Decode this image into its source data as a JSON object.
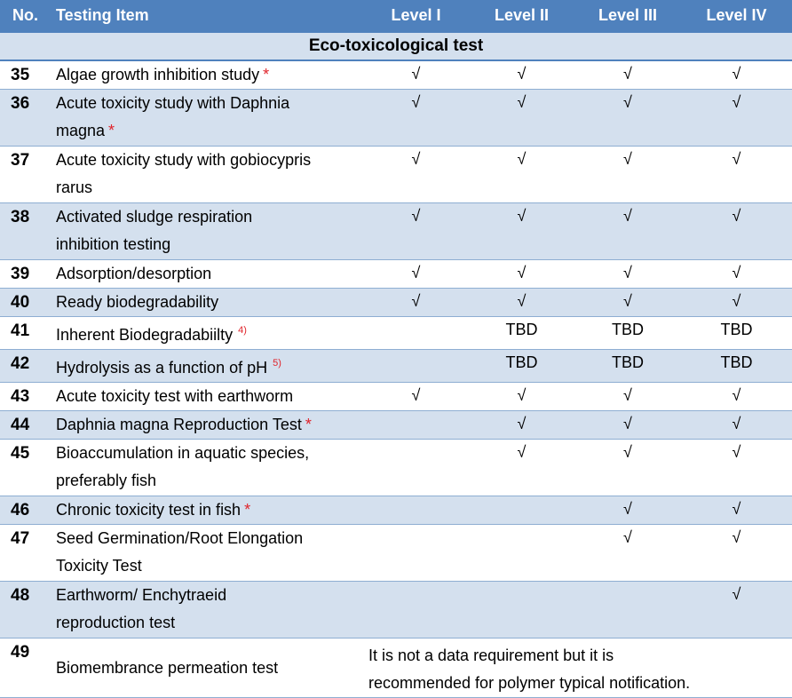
{
  "header": {
    "no": "No.",
    "item": "Testing Item",
    "levels": [
      "Level I",
      "Level II",
      "Level III",
      "Level IV"
    ]
  },
  "section_title": "Eco-toxicological test",
  "check": "√",
  "rows": [
    {
      "no": "35",
      "line1": "Algae growth inhibition study",
      "line2": "",
      "star": "*",
      "sup": "",
      "l1": "√",
      "l2": "√",
      "l3": "√",
      "l4": "√"
    },
    {
      "no": "36",
      "line1": "Acute toxicity study with Daphnia",
      "line2": "magna",
      "star": "*",
      "sup": "",
      "l1": "√",
      "l2": "√",
      "l3": "√",
      "l4": "√"
    },
    {
      "no": "37",
      "line1": "Acute toxicity study with gobiocypris",
      "line2": "rarus",
      "star": "",
      "sup": "",
      "l1": "√",
      "l2": "√",
      "l3": "√",
      "l4": "√"
    },
    {
      "no": "38",
      "line1": "Activated sludge respiration",
      "line2": "inhibition testing",
      "star": "",
      "sup": "",
      "l1": "√",
      "l2": "√",
      "l3": "√",
      "l4": "√"
    },
    {
      "no": "39",
      "line1": "Adsorption/desorption",
      "line2": "",
      "star": "",
      "sup": "",
      "l1": "√",
      "l2": "√",
      "l3": "√",
      "l4": "√"
    },
    {
      "no": "40",
      "line1": "Ready biodegradability",
      "line2": "",
      "star": "",
      "sup": "",
      "l1": "√",
      "l2": "√",
      "l3": "√",
      "l4": "√"
    },
    {
      "no": "41",
      "line1": "Inherent Biodegradabiilty",
      "line2": "",
      "star": "",
      "sup": "4)",
      "l1": "",
      "l2": "TBD",
      "l3": "TBD",
      "l4": "TBD"
    },
    {
      "no": "42",
      "line1": "Hydrolysis as a function of pH",
      "line2": "",
      "star": "",
      "sup": "5)",
      "l1": "",
      "l2": "TBD",
      "l3": "TBD",
      "l4": "TBD"
    },
    {
      "no": "43",
      "line1": "Acute toxicity test with earthworm",
      "line2": "",
      "star": "",
      "sup": "",
      "l1": "√",
      "l2": "√",
      "l3": "√",
      "l4": "√"
    },
    {
      "no": "44",
      "line1": "Daphnia magna Reproduction Test",
      "line2": "",
      "star": "*",
      "sup": "",
      "l1": "",
      "l2": "√",
      "l3": "√",
      "l4": "√"
    },
    {
      "no": "45",
      "line1": "Bioaccumulation in aquatic species,",
      "line2": "preferably fish",
      "star": "",
      "sup": "",
      "l1": "",
      "l2": "√",
      "l3": "√",
      "l4": "√"
    },
    {
      "no": "46",
      "line1": "Chronic toxicity test in fish",
      "line2": "",
      "star": "*",
      "sup": "",
      "l1": "",
      "l2": "",
      "l3": "√",
      "l4": "√"
    },
    {
      "no": "47",
      "line1": "Seed Germination/Root Elongation",
      "line2": "Toxicity Test",
      "star": "",
      "sup": "",
      "l1": "",
      "l2": "",
      "l3": "√",
      "l4": "√"
    },
    {
      "no": "48",
      "line1": "Earthworm/ Enchytraeid",
      "line2": "reproduction test",
      "star": "",
      "sup": "",
      "l1": "",
      "l2": "",
      "l3": "",
      "l4": "√"
    }
  ],
  "last_row": {
    "no": "49",
    "item": "Biomembrance permeation test",
    "note_line1": "It is not a data requirement but it is",
    "note_line2": "recommended for polymer typical notification."
  }
}
